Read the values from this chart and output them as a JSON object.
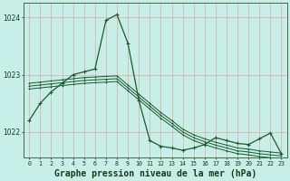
{
  "title": "Graphe pression niveau de la mer (hPa)",
  "background_color": "#c8eee8",
  "grid_color": "#ddaaaa",
  "line_color": "#1a5c2a",
  "hours": [
    0,
    1,
    2,
    3,
    4,
    5,
    6,
    7,
    8,
    9,
    10,
    11,
    12,
    13,
    14,
    15,
    16,
    17,
    18,
    19,
    20,
    21,
    22,
    23
  ],
  "pressure_main": [
    1022.2,
    1022.5,
    1022.7,
    1022.85,
    1023.0,
    1023.05,
    1023.1,
    1023.95,
    1024.05,
    1023.55,
    1022.55,
    1021.85,
    1021.75,
    1021.72,
    1021.68,
    1021.72,
    1021.78,
    1021.9,
    1021.85,
    1021.8,
    1021.78,
    1021.88,
    1021.98,
    1021.62
  ],
  "pressure_line2": [
    1022.75,
    1022.77,
    1022.79,
    1022.81,
    1022.83,
    1022.85,
    1022.86,
    1022.87,
    1022.88,
    1022.72,
    1022.56,
    1022.4,
    1022.24,
    1022.1,
    1021.95,
    1021.85,
    1021.78,
    1021.72,
    1021.67,
    1021.62,
    1021.6,
    1021.57,
    1021.55,
    1021.53
  ],
  "pressure_line3": [
    1022.8,
    1022.82,
    1022.84,
    1022.86,
    1022.88,
    1022.9,
    1022.91,
    1022.92,
    1022.93,
    1022.77,
    1022.61,
    1022.45,
    1022.29,
    1022.15,
    1022.0,
    1021.9,
    1021.83,
    1021.77,
    1021.72,
    1021.67,
    1021.65,
    1021.62,
    1021.6,
    1021.58
  ],
  "pressure_line4": [
    1022.85,
    1022.87,
    1022.89,
    1022.91,
    1022.93,
    1022.95,
    1022.96,
    1022.97,
    1022.98,
    1022.82,
    1022.66,
    1022.5,
    1022.34,
    1022.2,
    1022.05,
    1021.95,
    1021.88,
    1021.82,
    1021.77,
    1021.72,
    1021.7,
    1021.67,
    1021.65,
    1021.63
  ],
  "ylim": [
    1021.55,
    1024.25
  ],
  "yticks": [
    1022.0,
    1023.0,
    1024.0
  ],
  "title_fontsize": 7.0
}
